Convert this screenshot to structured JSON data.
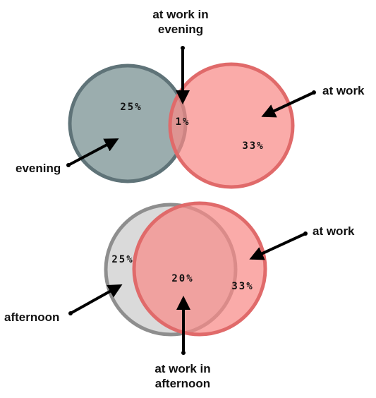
{
  "colors": {
    "evening": "#8a9fa0",
    "evening_stroke": "#5f7378",
    "at_work": "#f88a88",
    "at_work_stroke": "#e06a6a",
    "afternoon": "#d6d6d6",
    "afternoon_stroke": "#8e8e8e",
    "arrow": "#000000"
  },
  "top_diagram": {
    "label_intersection": "at work in evening",
    "label_intersection_line1": "at work in",
    "label_intersection_line2": "evening",
    "label_right": "at work",
    "label_left": "evening",
    "pct_left": "25%",
    "pct_intersection": "1%",
    "pct_right": "33%"
  },
  "bottom_diagram": {
    "label_right": "at work",
    "label_left": "afternoon",
    "label_intersection_line1": "at work in",
    "label_intersection_line2": "afternoon",
    "pct_left": "25%",
    "pct_intersection": "20%",
    "pct_right": "33%"
  }
}
